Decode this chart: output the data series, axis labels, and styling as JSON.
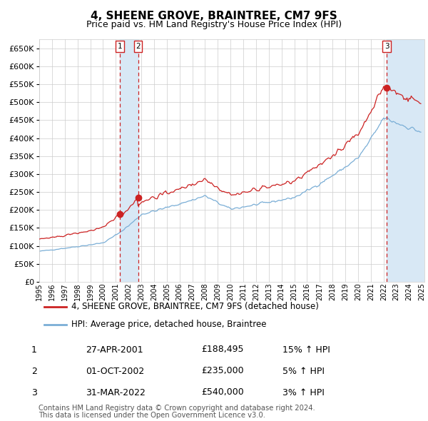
{
  "title": "4, SHEENE GROVE, BRAINTREE, CM7 9FS",
  "subtitle": "Price paid vs. HM Land Registry's House Price Index (HPI)",
  "legend_line1": "4, SHEENE GROVE, BRAINTREE, CM7 9FS (detached house)",
  "legend_line2": "HPI: Average price, detached house, Braintree",
  "footer1": "Contains HM Land Registry data © Crown copyright and database right 2024.",
  "footer2": "This data is licensed under the Open Government Licence v3.0.",
  "transactions": [
    {
      "num": 1,
      "date": "27-APR-2001",
      "price": "£188,495",
      "hpi": "15% ↑ HPI"
    },
    {
      "num": 2,
      "date": "01-OCT-2002",
      "price": "£235,000",
      "hpi": "5% ↑ HPI"
    },
    {
      "num": 3,
      "date": "31-MAR-2022",
      "price": "£540,000",
      "hpi": "3% ↑ HPI"
    }
  ],
  "transaction_years": [
    2001.33,
    2002.75,
    2022.25
  ],
  "transaction_prices": [
    188495,
    235000,
    540000
  ],
  "ylim": [
    0,
    675000
  ],
  "yticks": [
    0,
    50000,
    100000,
    150000,
    200000,
    250000,
    300000,
    350000,
    400000,
    450000,
    500000,
    550000,
    600000,
    650000
  ],
  "background_color": "#ffffff",
  "grid_color": "#cccccc",
  "red_color": "#cc2222",
  "blue_color": "#7aaed6",
  "shade_color": "#d8e8f5"
}
